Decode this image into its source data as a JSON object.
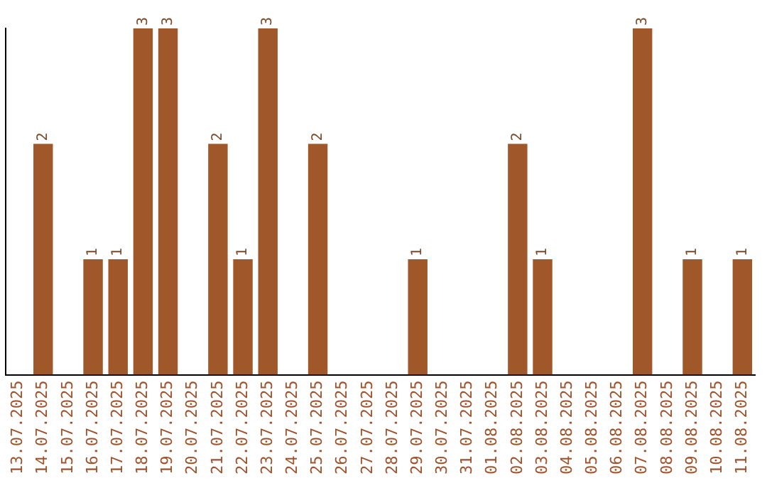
{
  "chart_data": {
    "type": "bar",
    "categories": [
      "13.07.2025",
      "14.07.2025",
      "15.07.2025",
      "16.07.2025",
      "17.07.2025",
      "18.07.2025",
      "19.07.2025",
      "20.07.2025",
      "21.07.2025",
      "22.07.2025",
      "23.07.2025",
      "24.07.2025",
      "25.07.2025",
      "26.07.2025",
      "27.07.2025",
      "28.07.2025",
      "29.07.2025",
      "30.07.2025",
      "31.07.2025",
      "01.08.2025",
      "02.08.2025",
      "03.08.2025",
      "04.08.2025",
      "05.08.2025",
      "06.08.2025",
      "07.08.2025",
      "08.08.2025",
      "09.08.2025",
      "10.08.2025",
      "11.08.2025"
    ],
    "values": [
      null,
      2,
      null,
      1,
      1,
      3,
      3,
      null,
      2,
      1,
      3,
      null,
      2,
      null,
      null,
      null,
      1,
      null,
      null,
      null,
      2,
      1,
      null,
      null,
      null,
      3,
      null,
      1,
      null,
      1
    ],
    "color": "#a0582a",
    "ylim": [
      0,
      3
    ],
    "tick_labels": "x",
    "grid": false,
    "legend": false,
    "data_labels": true
  }
}
